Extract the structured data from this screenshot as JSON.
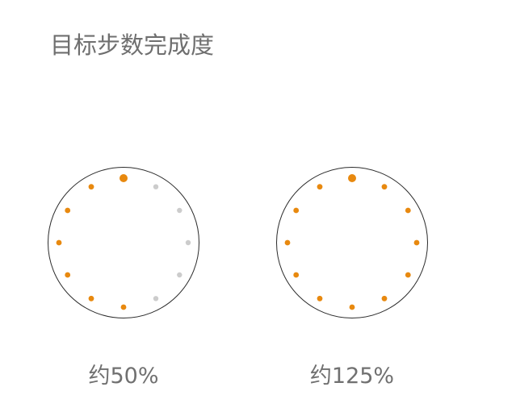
{
  "title": "目标步数完成度",
  "colors": {
    "active_dot": "#e8890f",
    "inactive_dot": "#cccccc",
    "ring": "#2b2b2b",
    "text": "#707070"
  },
  "dials": [
    {
      "caption": "约50%",
      "completion": 0.5,
      "dot_count": 12
    },
    {
      "caption": "约125%",
      "completion": 1.25,
      "dot_count": 12
    }
  ]
}
